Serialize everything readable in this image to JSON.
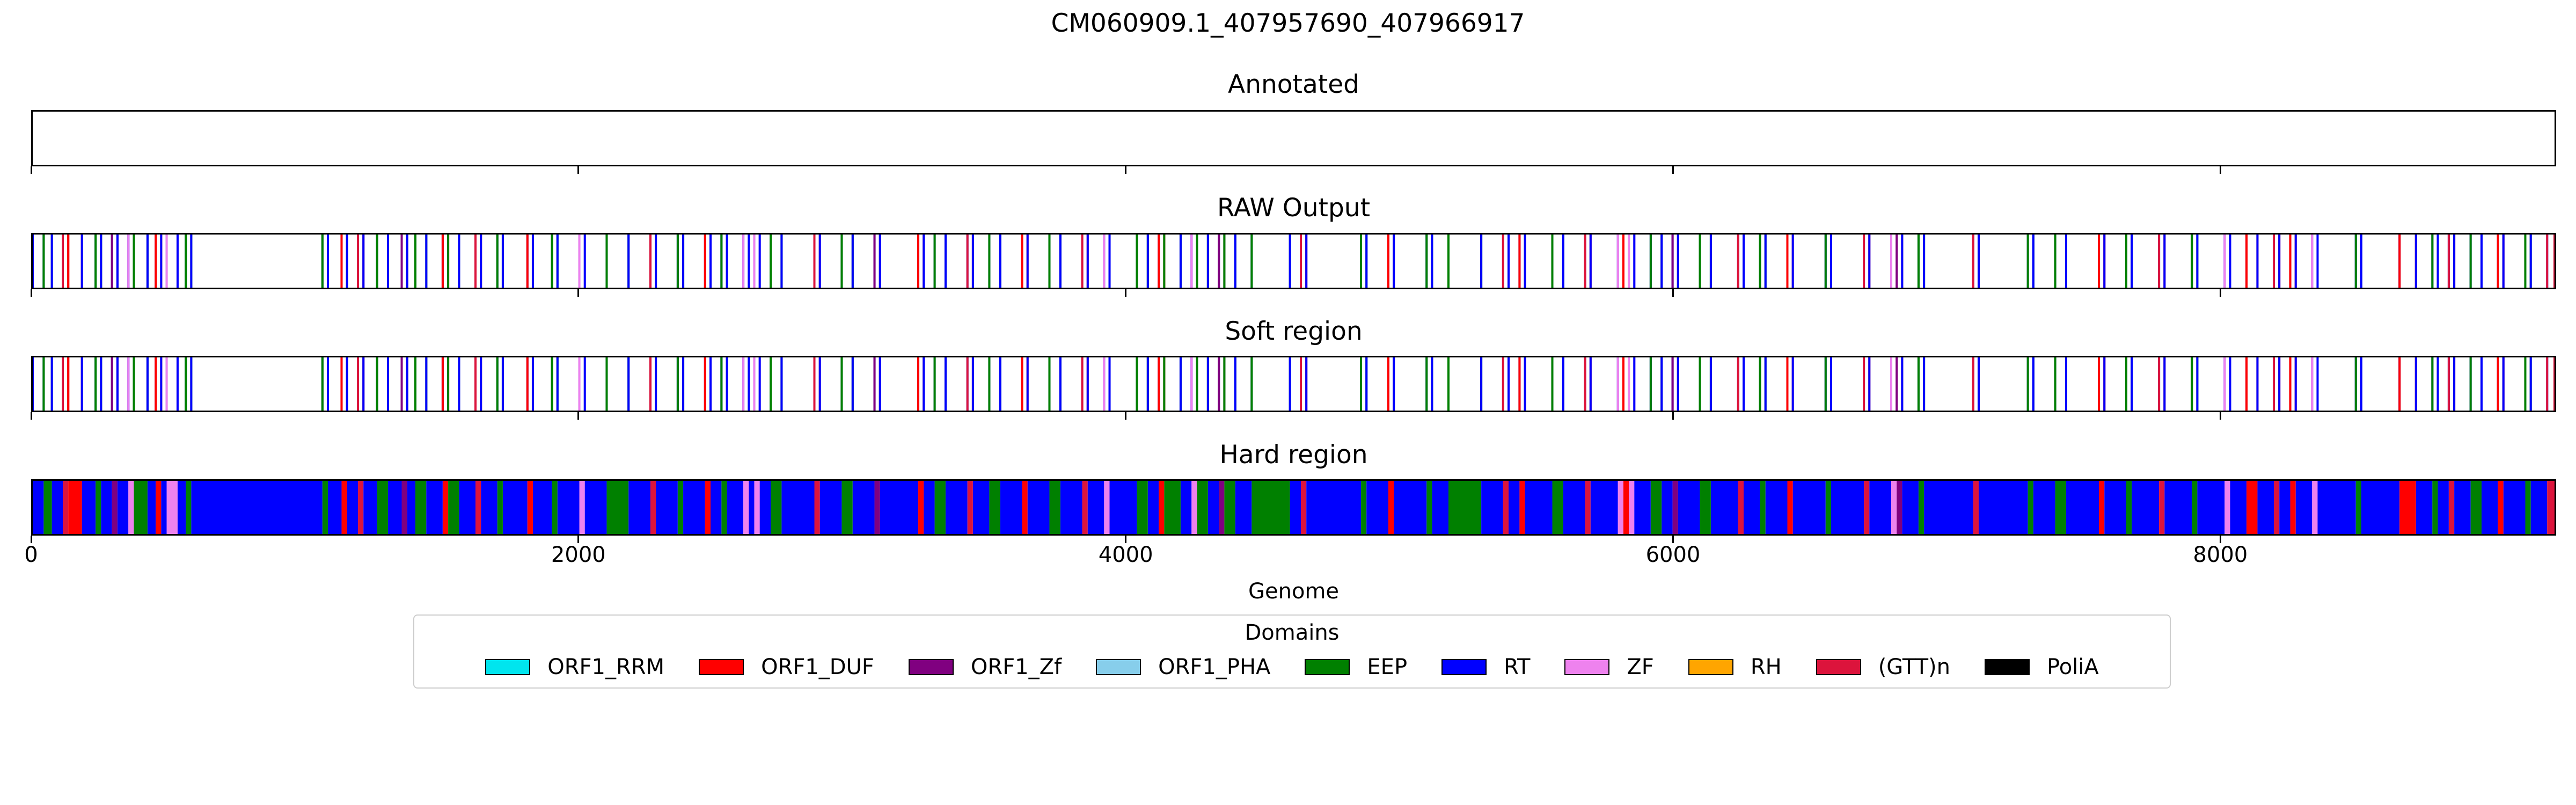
{
  "chart_data": {
    "type": "genome-track",
    "title": "CM060909.1_407957690_407966917",
    "xlabel": "Genome",
    "xlim": [
      0,
      9227
    ],
    "xticks": [
      0,
      2000,
      4000,
      6000,
      8000
    ],
    "tracks": [
      {
        "title": "Annotated",
        "mode": "empty"
      },
      {
        "title": "RAW Output",
        "mode": "lines"
      },
      {
        "title": "Soft region",
        "mode": "lines"
      },
      {
        "title": "Hard region",
        "mode": "filled"
      }
    ],
    "legend": {
      "title": "Domains",
      "placement": "bottom-center",
      "entries": [
        {
          "name": "ORF1_RRM",
          "color": "#00e5ee"
        },
        {
          "name": "ORF1_DUF",
          "color": "#ff0000"
        },
        {
          "name": "ORF1_Zf",
          "color": "#800080"
        },
        {
          "name": "ORF1_PHA",
          "color": "#87ceeb"
        },
        {
          "name": "EEP",
          "color": "#008000"
        },
        {
          "name": "RT",
          "color": "#0000ff"
        },
        {
          "name": "ZF",
          "color": "#ee82ee"
        },
        {
          "name": "RH",
          "color": "#ffa500"
        },
        {
          "name": "(GTT)n",
          "color": "#dc143c"
        },
        {
          "name": "PoliA",
          "color": "#000000"
        }
      ]
    },
    "segments": [
      {
        "start": 0,
        "end": 40,
        "domain": "RT"
      },
      {
        "start": 40,
        "end": 70,
        "domain": "EEP"
      },
      {
        "start": 70,
        "end": 110,
        "domain": "RT"
      },
      {
        "start": 110,
        "end": 130,
        "domain": "(GTT)n"
      },
      {
        "start": 130,
        "end": 180,
        "domain": "ORF1_DUF"
      },
      {
        "start": 180,
        "end": 230,
        "domain": "RT"
      },
      {
        "start": 230,
        "end": 250,
        "domain": "EEP"
      },
      {
        "start": 250,
        "end": 290,
        "domain": "RT"
      },
      {
        "start": 290,
        "end": 310,
        "domain": "ORF1_Zf"
      },
      {
        "start": 310,
        "end": 350,
        "domain": "RT"
      },
      {
        "start": 350,
        "end": 370,
        "domain": "ZF"
      },
      {
        "start": 370,
        "end": 420,
        "domain": "EEP"
      },
      {
        "start": 420,
        "end": 450,
        "domain": "RT"
      },
      {
        "start": 450,
        "end": 470,
        "domain": "ORF1_DUF"
      },
      {
        "start": 470,
        "end": 490,
        "domain": "RT"
      },
      {
        "start": 490,
        "end": 530,
        "domain": "ZF"
      },
      {
        "start": 530,
        "end": 560,
        "domain": "RT"
      },
      {
        "start": 560,
        "end": 580,
        "domain": "EEP"
      },
      {
        "start": 580,
        "end": 1060,
        "domain": "RT"
      },
      {
        "start": 1060,
        "end": 1080,
        "domain": "EEP"
      },
      {
        "start": 1080,
        "end": 1130,
        "domain": "RT"
      },
      {
        "start": 1130,
        "end": 1150,
        "domain": "ORF1_DUF"
      },
      {
        "start": 1150,
        "end": 1190,
        "domain": "RT"
      },
      {
        "start": 1190,
        "end": 1210,
        "domain": "(GTT)n"
      },
      {
        "start": 1210,
        "end": 1260,
        "domain": "RT"
      },
      {
        "start": 1260,
        "end": 1300,
        "domain": "EEP"
      },
      {
        "start": 1300,
        "end": 1350,
        "domain": "RT"
      },
      {
        "start": 1350,
        "end": 1370,
        "domain": "ORF1_Zf"
      },
      {
        "start": 1370,
        "end": 1400,
        "domain": "RT"
      },
      {
        "start": 1400,
        "end": 1440,
        "domain": "EEP"
      },
      {
        "start": 1440,
        "end": 1500,
        "domain": "RT"
      },
      {
        "start": 1500,
        "end": 1520,
        "domain": "ORF1_DUF"
      },
      {
        "start": 1520,
        "end": 1560,
        "domain": "EEP"
      },
      {
        "start": 1560,
        "end": 1620,
        "domain": "RT"
      },
      {
        "start": 1620,
        "end": 1640,
        "domain": "(GTT)n"
      },
      {
        "start": 1640,
        "end": 1700,
        "domain": "RT"
      },
      {
        "start": 1700,
        "end": 1720,
        "domain": "EEP"
      },
      {
        "start": 1720,
        "end": 1810,
        "domain": "RT"
      },
      {
        "start": 1810,
        "end": 1830,
        "domain": "ORF1_DUF"
      },
      {
        "start": 1830,
        "end": 1900,
        "domain": "RT"
      },
      {
        "start": 1900,
        "end": 1920,
        "domain": "EEP"
      },
      {
        "start": 1920,
        "end": 2000,
        "domain": "RT"
      },
      {
        "start": 2000,
        "end": 2020,
        "domain": "ZF"
      },
      {
        "start": 2020,
        "end": 2100,
        "domain": "RT"
      },
      {
        "start": 2100,
        "end": 2180,
        "domain": "EEP"
      },
      {
        "start": 2180,
        "end": 2260,
        "domain": "RT"
      },
      {
        "start": 2260,
        "end": 2280,
        "domain": "(GTT)n"
      },
      {
        "start": 2280,
        "end": 2360,
        "domain": "RT"
      },
      {
        "start": 2360,
        "end": 2380,
        "domain": "EEP"
      },
      {
        "start": 2380,
        "end": 2460,
        "domain": "RT"
      },
      {
        "start": 2460,
        "end": 2480,
        "domain": "ORF1_DUF"
      },
      {
        "start": 2480,
        "end": 2520,
        "domain": "RT"
      },
      {
        "start": 2520,
        "end": 2540,
        "domain": "EEP"
      },
      {
        "start": 2540,
        "end": 2600,
        "domain": "RT"
      },
      {
        "start": 2600,
        "end": 2620,
        "domain": "ZF"
      },
      {
        "start": 2620,
        "end": 2640,
        "domain": "RT"
      },
      {
        "start": 2640,
        "end": 2660,
        "domain": "ZF"
      },
      {
        "start": 2660,
        "end": 2700,
        "domain": "RT"
      },
      {
        "start": 2700,
        "end": 2740,
        "domain": "EEP"
      },
      {
        "start": 2740,
        "end": 2860,
        "domain": "RT"
      },
      {
        "start": 2860,
        "end": 2880,
        "domain": "(GTT)n"
      },
      {
        "start": 2880,
        "end": 2960,
        "domain": "RT"
      },
      {
        "start": 2960,
        "end": 3000,
        "domain": "EEP"
      },
      {
        "start": 3000,
        "end": 3080,
        "domain": "RT"
      },
      {
        "start": 3080,
        "end": 3100,
        "domain": "ORF1_Zf"
      },
      {
        "start": 3100,
        "end": 3240,
        "domain": "RT"
      },
      {
        "start": 3240,
        "end": 3260,
        "domain": "ORF1_DUF"
      },
      {
        "start": 3260,
        "end": 3300,
        "domain": "RT"
      },
      {
        "start": 3300,
        "end": 3340,
        "domain": "EEP"
      },
      {
        "start": 3340,
        "end": 3420,
        "domain": "RT"
      },
      {
        "start": 3420,
        "end": 3440,
        "domain": "(GTT)n"
      },
      {
        "start": 3440,
        "end": 3500,
        "domain": "RT"
      },
      {
        "start": 3500,
        "end": 3540,
        "domain": "EEP"
      },
      {
        "start": 3540,
        "end": 3620,
        "domain": "RT"
      },
      {
        "start": 3620,
        "end": 3640,
        "domain": "ORF1_DUF"
      },
      {
        "start": 3640,
        "end": 3720,
        "domain": "RT"
      },
      {
        "start": 3720,
        "end": 3760,
        "domain": "EEP"
      },
      {
        "start": 3760,
        "end": 3840,
        "domain": "RT"
      },
      {
        "start": 3840,
        "end": 3860,
        "domain": "(GTT)n"
      },
      {
        "start": 3860,
        "end": 3920,
        "domain": "RT"
      },
      {
        "start": 3920,
        "end": 3940,
        "domain": "ZF"
      },
      {
        "start": 3940,
        "end": 4040,
        "domain": "RT"
      },
      {
        "start": 4040,
        "end": 4080,
        "domain": "EEP"
      },
      {
        "start": 4080,
        "end": 4120,
        "domain": "RT"
      },
      {
        "start": 4120,
        "end": 4140,
        "domain": "ORF1_DUF"
      },
      {
        "start": 4140,
        "end": 4200,
        "domain": "EEP"
      },
      {
        "start": 4200,
        "end": 4240,
        "domain": "RT"
      },
      {
        "start": 4240,
        "end": 4260,
        "domain": "ZF"
      },
      {
        "start": 4260,
        "end": 4300,
        "domain": "EEP"
      },
      {
        "start": 4300,
        "end": 4340,
        "domain": "RT"
      },
      {
        "start": 4340,
        "end": 4360,
        "domain": "ORF1_Zf"
      },
      {
        "start": 4360,
        "end": 4400,
        "domain": "EEP"
      },
      {
        "start": 4400,
        "end": 4460,
        "domain": "RT"
      },
      {
        "start": 4460,
        "end": 4600,
        "domain": "EEP"
      },
      {
        "start": 4600,
        "end": 4640,
        "domain": "RT"
      },
      {
        "start": 4640,
        "end": 4660,
        "domain": "(GTT)n"
      },
      {
        "start": 4660,
        "end": 4860,
        "domain": "RT"
      },
      {
        "start": 4860,
        "end": 4880,
        "domain": "EEP"
      },
      {
        "start": 4880,
        "end": 4960,
        "domain": "RT"
      },
      {
        "start": 4960,
        "end": 4980,
        "domain": "ORF1_DUF"
      },
      {
        "start": 4980,
        "end": 5100,
        "domain": "RT"
      },
      {
        "start": 5100,
        "end": 5120,
        "domain": "EEP"
      },
      {
        "start": 5120,
        "end": 5180,
        "domain": "RT"
      },
      {
        "start": 5180,
        "end": 5300,
        "domain": "EEP"
      },
      {
        "start": 5300,
        "end": 5380,
        "domain": "RT"
      },
      {
        "start": 5380,
        "end": 5400,
        "domain": "(GTT)n"
      },
      {
        "start": 5400,
        "end": 5440,
        "domain": "RT"
      },
      {
        "start": 5440,
        "end": 5460,
        "domain": "ORF1_DUF"
      },
      {
        "start": 5460,
        "end": 5560,
        "domain": "RT"
      },
      {
        "start": 5560,
        "end": 5600,
        "domain": "EEP"
      },
      {
        "start": 5600,
        "end": 5680,
        "domain": "RT"
      },
      {
        "start": 5680,
        "end": 5700,
        "domain": "(GTT)n"
      },
      {
        "start": 5700,
        "end": 5800,
        "domain": "RT"
      },
      {
        "start": 5800,
        "end": 5820,
        "domain": "ZF"
      },
      {
        "start": 5820,
        "end": 5840,
        "domain": "ORF1_DUF"
      },
      {
        "start": 5840,
        "end": 5860,
        "domain": "ZF"
      },
      {
        "start": 5860,
        "end": 5920,
        "domain": "RT"
      },
      {
        "start": 5920,
        "end": 5960,
        "domain": "EEP"
      },
      {
        "start": 5960,
        "end": 6000,
        "domain": "RT"
      },
      {
        "start": 6000,
        "end": 6020,
        "domain": "ORF1_Zf"
      },
      {
        "start": 6020,
        "end": 6100,
        "domain": "RT"
      },
      {
        "start": 6100,
        "end": 6140,
        "domain": "EEP"
      },
      {
        "start": 6140,
        "end": 6240,
        "domain": "RT"
      },
      {
        "start": 6240,
        "end": 6260,
        "domain": "(GTT)n"
      },
      {
        "start": 6260,
        "end": 6320,
        "domain": "RT"
      },
      {
        "start": 6320,
        "end": 6340,
        "domain": "EEP"
      },
      {
        "start": 6340,
        "end": 6420,
        "domain": "RT"
      },
      {
        "start": 6420,
        "end": 6440,
        "domain": "ORF1_DUF"
      },
      {
        "start": 6440,
        "end": 6560,
        "domain": "RT"
      },
      {
        "start": 6560,
        "end": 6580,
        "domain": "EEP"
      },
      {
        "start": 6580,
        "end": 6700,
        "domain": "RT"
      },
      {
        "start": 6700,
        "end": 6720,
        "domain": "(GTT)n"
      },
      {
        "start": 6720,
        "end": 6800,
        "domain": "RT"
      },
      {
        "start": 6800,
        "end": 6820,
        "domain": "ZF"
      },
      {
        "start": 6820,
        "end": 6840,
        "domain": "ORF1_Zf"
      },
      {
        "start": 6840,
        "end": 6900,
        "domain": "RT"
      },
      {
        "start": 6900,
        "end": 6920,
        "domain": "EEP"
      },
      {
        "start": 6920,
        "end": 7100,
        "domain": "RT"
      },
      {
        "start": 7100,
        "end": 7120,
        "domain": "(GTT)n"
      },
      {
        "start": 7120,
        "end": 7300,
        "domain": "RT"
      },
      {
        "start": 7300,
        "end": 7320,
        "domain": "EEP"
      },
      {
        "start": 7320,
        "end": 7400,
        "domain": "RT"
      },
      {
        "start": 7400,
        "end": 7440,
        "domain": "EEP"
      },
      {
        "start": 7440,
        "end": 7560,
        "domain": "RT"
      },
      {
        "start": 7560,
        "end": 7580,
        "domain": "ORF1_DUF"
      },
      {
        "start": 7580,
        "end": 7660,
        "domain": "RT"
      },
      {
        "start": 7660,
        "end": 7680,
        "domain": "EEP"
      },
      {
        "start": 7680,
        "end": 7780,
        "domain": "RT"
      },
      {
        "start": 7780,
        "end": 7800,
        "domain": "(GTT)n"
      },
      {
        "start": 7800,
        "end": 7900,
        "domain": "RT"
      },
      {
        "start": 7900,
        "end": 7920,
        "domain": "EEP"
      },
      {
        "start": 7920,
        "end": 8020,
        "domain": "RT"
      },
      {
        "start": 8020,
        "end": 8040,
        "domain": "ZF"
      },
      {
        "start": 8040,
        "end": 8100,
        "domain": "RT"
      },
      {
        "start": 8100,
        "end": 8140,
        "domain": "ORF1_DUF"
      },
      {
        "start": 8140,
        "end": 8200,
        "domain": "RT"
      },
      {
        "start": 8200,
        "end": 8220,
        "domain": "(GTT)n"
      },
      {
        "start": 8220,
        "end": 8260,
        "domain": "RT"
      },
      {
        "start": 8260,
        "end": 8280,
        "domain": "ORF1_DUF"
      },
      {
        "start": 8280,
        "end": 8340,
        "domain": "RT"
      },
      {
        "start": 8340,
        "end": 8360,
        "domain": "ZF"
      },
      {
        "start": 8360,
        "end": 8500,
        "domain": "RT"
      },
      {
        "start": 8500,
        "end": 8520,
        "domain": "EEP"
      },
      {
        "start": 8520,
        "end": 8660,
        "domain": "RT"
      },
      {
        "start": 8660,
        "end": 8720,
        "domain": "ORF1_DUF"
      },
      {
        "start": 8720,
        "end": 8780,
        "domain": "RT"
      },
      {
        "start": 8780,
        "end": 8800,
        "domain": "EEP"
      },
      {
        "start": 8800,
        "end": 8840,
        "domain": "RT"
      },
      {
        "start": 8840,
        "end": 8860,
        "domain": "(GTT)n"
      },
      {
        "start": 8860,
        "end": 8920,
        "domain": "RT"
      },
      {
        "start": 8920,
        "end": 8960,
        "domain": "EEP"
      },
      {
        "start": 8960,
        "end": 9020,
        "domain": "RT"
      },
      {
        "start": 9020,
        "end": 9040,
        "domain": "ORF1_DUF"
      },
      {
        "start": 9040,
        "end": 9120,
        "domain": "RT"
      },
      {
        "start": 9120,
        "end": 9140,
        "domain": "EEP"
      },
      {
        "start": 9140,
        "end": 9200,
        "domain": "RT"
      },
      {
        "start": 9200,
        "end": 9227,
        "domain": "(GTT)n"
      }
    ]
  }
}
